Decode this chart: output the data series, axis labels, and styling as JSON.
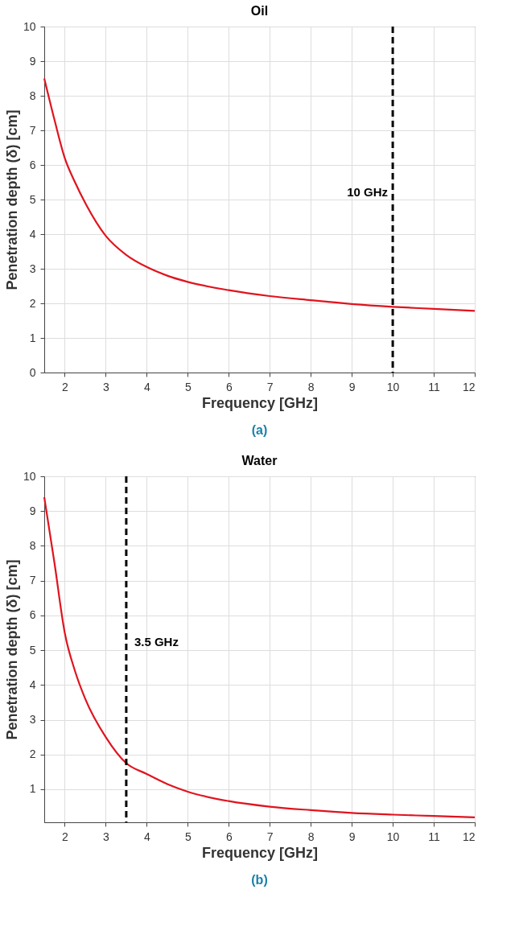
{
  "chart_data": [
    {
      "type": "line",
      "title": "Oil",
      "xlabel": "Frequency [GHz]",
      "ylabel": "Penetration depth (δ) [cm]",
      "x": [
        1.5,
        1.75,
        2,
        2.25,
        2.5,
        3,
        3.5,
        4,
        4.5,
        5,
        6,
        7,
        8,
        9,
        10,
        11,
        12
      ],
      "series": [
        {
          "color": "#e0141e",
          "values": [
            8.5,
            7.3,
            6.2,
            5.5,
            4.9,
            3.95,
            3.4,
            3.05,
            2.8,
            2.62,
            2.38,
            2.21,
            2.09,
            1.98,
            1.9,
            1.84,
            1.78
          ]
        }
      ],
      "xlim": [
        1.5,
        12
      ],
      "xticks": [
        2,
        3,
        4,
        5,
        6,
        7,
        8,
        9,
        10,
        11,
        12
      ],
      "ylim": [
        0,
        10
      ],
      "yticks": [
        0,
        1,
        2,
        3,
        4,
        5,
        6,
        7,
        8,
        9,
        10
      ],
      "grid": true,
      "line_style": "solid",
      "ref_lines": [
        {
          "axis": "x",
          "value": 10,
          "label": "10 GHz",
          "color": "#000000",
          "line_style": "dashed"
        }
      ],
      "annotations": [
        "(a)"
      ]
    },
    {
      "type": "line",
      "title": "Water",
      "xlabel": "Frequency [GHz]",
      "ylabel": "Penetration depth (δ) [cm]",
      "x": [
        1.5,
        1.75,
        2,
        2.25,
        2.5,
        3,
        3.5,
        4,
        4.5,
        5,
        6,
        7,
        8,
        9,
        10,
        11,
        12
      ],
      "series": [
        {
          "color": "#e0141e",
          "values": [
            9.4,
            7.5,
            5.5,
            4.4,
            3.6,
            2.5,
            1.75,
            1.44,
            1.15,
            0.93,
            0.66,
            0.5,
            0.4,
            0.32,
            0.27,
            0.23,
            0.19
          ]
        }
      ],
      "xlim": [
        1.5,
        12
      ],
      "xticks": [
        2,
        3,
        4,
        5,
        6,
        7,
        8,
        9,
        10,
        11,
        12
      ],
      "ylim": [
        0.05,
        10
      ],
      "yticks": [
        1,
        2,
        3,
        4,
        5,
        6,
        7,
        8,
        9,
        10
      ],
      "grid": true,
      "line_style": "solid",
      "ref_lines": [
        {
          "axis": "x",
          "value": 3.5,
          "label": "3.5 GHz",
          "color": "#000000",
          "line_style": "dashed"
        }
      ],
      "annotations": [
        "(b)"
      ]
    }
  ]
}
